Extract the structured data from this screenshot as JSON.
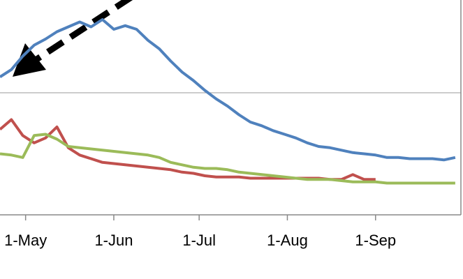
{
  "chart_data": {
    "type": "line",
    "x": [
      112,
      116,
      120,
      124,
      128,
      132,
      136,
      140,
      144,
      148,
      152,
      156,
      160,
      164,
      168,
      172,
      176,
      180,
      184,
      188,
      192,
      196,
      200,
      204,
      208,
      212,
      216,
      220,
      224,
      228,
      232,
      236,
      240,
      244,
      248,
      252,
      256,
      260,
      264,
      268,
      272
    ],
    "xlim": [
      112,
      274
    ],
    "xticks": [
      {
        "value": 121,
        "label": "1-May"
      },
      {
        "value": 152,
        "label": "1-Jun"
      },
      {
        "value": 182,
        "label": "1-Jul"
      },
      {
        "value": 213,
        "label": "1-Aug"
      },
      {
        "value": 244,
        "label": "1-Sep"
      }
    ],
    "ylim": [
      0,
      1.76
    ],
    "reference_lines": [
      1
    ],
    "series": [
      {
        "color": "#4f81bd",
        "values": [
          1.13,
          1.19,
          1.3,
          1.39,
          1.44,
          1.5,
          1.54,
          1.58,
          1.54,
          1.6,
          1.52,
          1.55,
          1.52,
          1.43,
          1.36,
          1.26,
          1.17,
          1.1,
          1.02,
          0.95,
          0.89,
          0.82,
          0.76,
          0.73,
          0.69,
          0.66,
          0.63,
          0.59,
          0.56,
          0.55,
          0.53,
          0.51,
          0.5,
          0.49,
          0.47,
          0.47,
          0.46,
          0.46,
          0.46,
          0.45,
          0.47
        ]
      },
      {
        "color": "#c0504d",
        "values": [
          0.7,
          0.78,
          0.65,
          0.59,
          0.63,
          0.72,
          0.55,
          0.49,
          0.46,
          0.43,
          0.42,
          0.41,
          0.4,
          0.39,
          0.38,
          0.37,
          0.35,
          0.34,
          0.32,
          0.31,
          0.31,
          0.31,
          0.3,
          0.3,
          0.3,
          0.3,
          0.3,
          0.3,
          0.3,
          0.29,
          0.29,
          0.33,
          0.29,
          0.29,
          null,
          null,
          null,
          null,
          null,
          null,
          null
        ]
      },
      {
        "color": "#9bbb59",
        "values": [
          0.5,
          0.49,
          0.47,
          0.65,
          0.66,
          0.62,
          0.56,
          0.55,
          0.54,
          0.53,
          0.52,
          0.51,
          0.5,
          0.49,
          0.47,
          0.43,
          0.41,
          0.39,
          0.38,
          0.38,
          0.37,
          0.35,
          0.34,
          0.33,
          0.32,
          0.31,
          0.3,
          0.29,
          0.29,
          0.29,
          0.28,
          0.27,
          0.27,
          0.27,
          0.26,
          0.26,
          0.26,
          0.26,
          0.26,
          0.26,
          0.26
        ]
      }
    ]
  }
}
